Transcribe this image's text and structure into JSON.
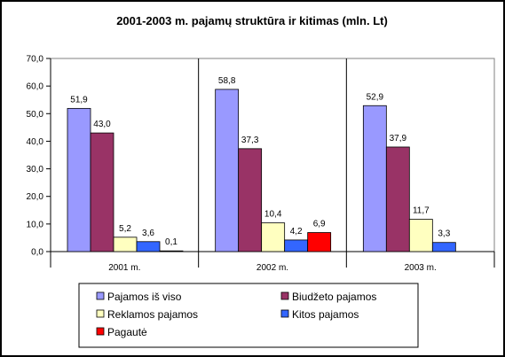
{
  "chart_data": {
    "type": "bar",
    "title": "2001-2003 m. pajamų struktūra ir kitimas (mln. Lt)",
    "xlabel": "",
    "ylabel": "",
    "categories": [
      "2001 m.",
      "2002 m.",
      "2003 m."
    ],
    "ylim": [
      0,
      70
    ],
    "yticks": [
      0,
      10,
      20,
      30,
      40,
      50,
      60,
      70
    ],
    "ytick_labels": [
      "0,0",
      "10,0",
      "20,0",
      "30,0",
      "40,0",
      "50,0",
      "60,0",
      "70,0"
    ],
    "grid": false,
    "legend_position": "bottom",
    "series": [
      {
        "name": "Pajamos iš viso",
        "color": "#9999ff",
        "values": [
          51.9,
          58.8,
          52.9
        ],
        "labels": [
          "51,9",
          "58,8",
          "52,9"
        ]
      },
      {
        "name": "Biudžeto pajamos",
        "color": "#993366",
        "values": [
          43.0,
          37.3,
          37.9
        ],
        "labels": [
          "43,0",
          "37,3",
          "37,9"
        ]
      },
      {
        "name": "Reklamos pajamos",
        "color": "#ffffc0",
        "values": [
          5.2,
          10.4,
          11.7
        ],
        "labels": [
          "5,2",
          "10,4",
          "11,7"
        ]
      },
      {
        "name": "Kitos pajamos",
        "color": "#3366ff",
        "values": [
          3.6,
          4.2,
          3.3
        ],
        "labels": [
          "3,6",
          "4,2",
          "3,3"
        ]
      },
      {
        "name": "Pagautė",
        "color": "#ff0000",
        "values": [
          0.1,
          6.9,
          null
        ],
        "labels": [
          "0,1",
          "6,9",
          null
        ]
      }
    ]
  }
}
